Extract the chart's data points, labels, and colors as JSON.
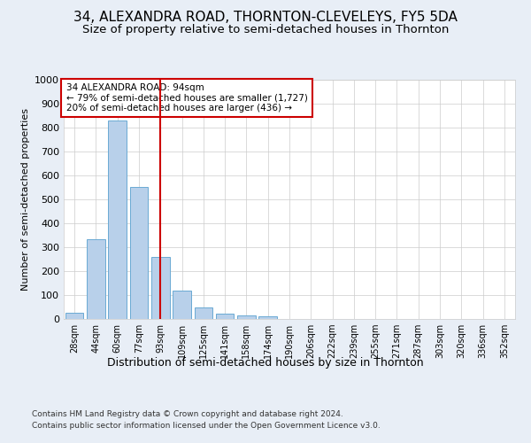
{
  "title": "34, ALEXANDRA ROAD, THORNTON-CLEVELEYS, FY5 5DA",
  "subtitle": "Size of property relative to semi-detached houses in Thornton",
  "xlabel": "Distribution of semi-detached houses by size in Thornton",
  "ylabel": "Number of semi-detached properties",
  "footer_line1": "Contains HM Land Registry data © Crown copyright and database right 2024.",
  "footer_line2": "Contains public sector information licensed under the Open Government Licence v3.0.",
  "annotation_line1": "34 ALEXANDRA ROAD: 94sqm",
  "annotation_line2": "← 79% of semi-detached houses are smaller (1,727)",
  "annotation_line3": "20% of semi-detached houses are larger (436) →",
  "bar_categories": [
    "28sqm",
    "44sqm",
    "60sqm",
    "77sqm",
    "93sqm",
    "109sqm",
    "125sqm",
    "141sqm",
    "158sqm",
    "174sqm",
    "190sqm",
    "206sqm",
    "222sqm",
    "239sqm",
    "255sqm",
    "271sqm",
    "287sqm",
    "303sqm",
    "320sqm",
    "336sqm",
    "352sqm"
  ],
  "bar_heights": [
    25,
    335,
    830,
    550,
    260,
    120,
    48,
    22,
    13,
    10,
    0,
    0,
    0,
    0,
    0,
    0,
    0,
    0,
    0,
    0,
    0
  ],
  "bar_color": "#b8d0ea",
  "bar_edge_color": "#6aaad4",
  "property_line_index": 4,
  "property_line_color": "#cc0000",
  "ylim": [
    0,
    1000
  ],
  "yticks": [
    0,
    100,
    200,
    300,
    400,
    500,
    600,
    700,
    800,
    900,
    1000
  ],
  "background_color": "#e8eef6",
  "plot_background": "#ffffff",
  "grid_color": "#cccccc",
  "title_fontsize": 11,
  "subtitle_fontsize": 9.5,
  "ylabel_fontsize": 8,
  "xlabel_fontsize": 9,
  "annotation_fontsize": 7.5,
  "annotation_box_color": "#ffffff",
  "annotation_box_edge": "#cc0000",
  "footer_fontsize": 6.5
}
